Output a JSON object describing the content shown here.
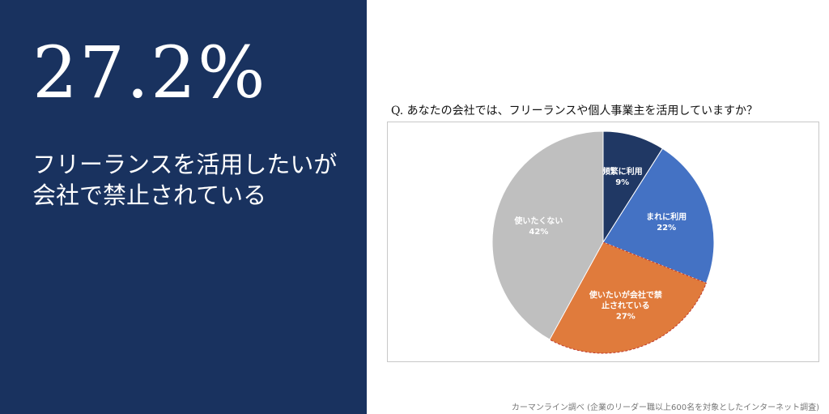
{
  "headline": {
    "value": "27.2%",
    "line1": "フリーランスを活用したいが",
    "line2": "会社で禁止されている"
  },
  "source_note": "カーマンライン調べ (企業のリーダー職以上600名を対象としたインターネット調査)",
  "chart_data": {
    "type": "pie",
    "title": "Q. あなたの会社では、フリーランスや個人事業主を活用していますか？",
    "start_angle_deg": 0,
    "direction": "clockwise",
    "slices": [
      {
        "label_lines": [
          "頻繁に利用"
        ],
        "value": 9,
        "pct_label": "9%",
        "color": "#203864",
        "label_color": "#ffffff"
      },
      {
        "label_lines": [
          "まれに利用"
        ],
        "value": 22,
        "pct_label": "22%",
        "color": "#4472c4",
        "label_color": "#ffffff"
      },
      {
        "label_lines": [
          "使いたいが会社で禁",
          "止されている"
        ],
        "value": 27,
        "pct_label": "27%",
        "color": "#e07b3c",
        "label_color": "#ffffff",
        "highlight": true
      },
      {
        "label_lines": [
          "使いたくない"
        ],
        "value": 42,
        "pct_label": "42%",
        "color": "#bfbfbf",
        "label_color": "#ffffff"
      }
    ]
  }
}
